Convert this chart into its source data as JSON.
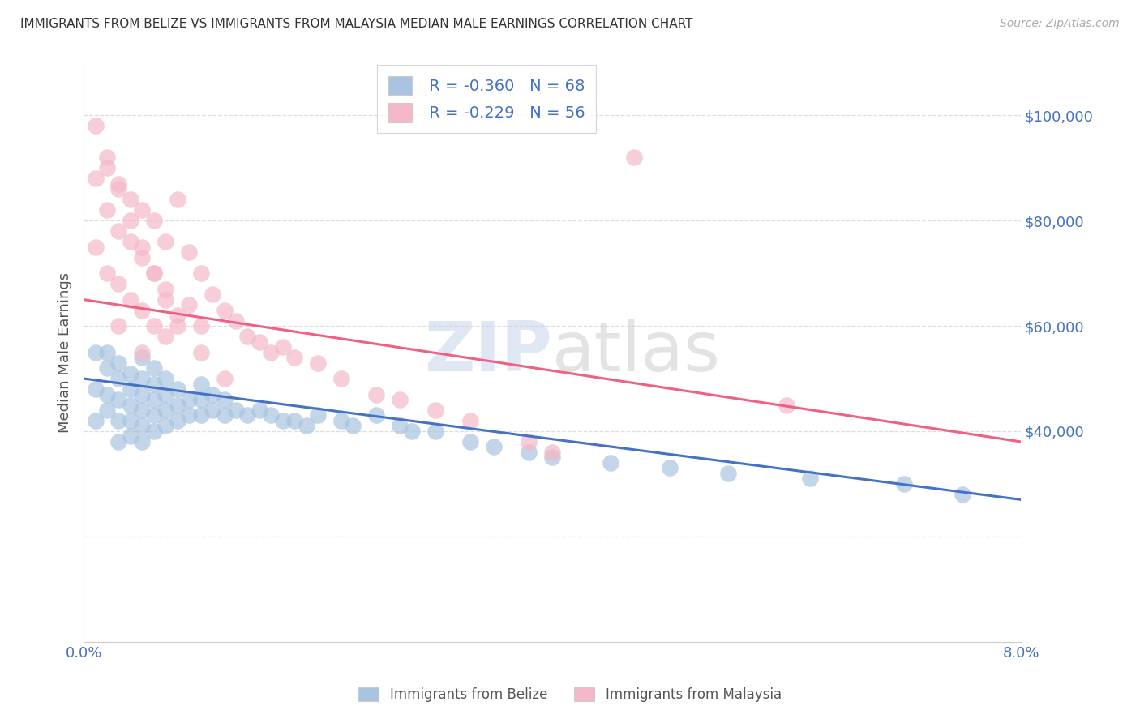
{
  "title": "IMMIGRANTS FROM BELIZE VS IMMIGRANTS FROM MALAYSIA MEDIAN MALE EARNINGS CORRELATION CHART",
  "source": "Source: ZipAtlas.com",
  "ylabel": "Median Male Earnings",
  "xlim": [
    0.0,
    0.08
  ],
  "ylim": [
    0,
    110000
  ],
  "yticks": [
    0,
    20000,
    40000,
    60000,
    80000,
    100000
  ],
  "ytick_labels": [
    "",
    "",
    "$40,000",
    "$60,000",
    "$80,000",
    "$100,000"
  ],
  "xticks": [
    0.0,
    0.01,
    0.02,
    0.03,
    0.04,
    0.05,
    0.06,
    0.07,
    0.08
  ],
  "xtick_labels": [
    "0.0%",
    "",
    "",
    "",
    "",
    "",
    "",
    "",
    "8.0%"
  ],
  "belize_color": "#a8c4e0",
  "malaysia_color": "#f4b8c8",
  "belize_line_color": "#4472c4",
  "malaysia_line_color": "#f06080",
  "legend_r_belize": "R = -0.360",
  "legend_n_belize": "N = 68",
  "legend_r_malaysia": "R = -0.229",
  "legend_n_malaysia": "N = 56",
  "label_belize": "Immigrants from Belize",
  "label_malaysia": "Immigrants from Malaysia",
  "watermark_zip": "ZIP",
  "watermark_atlas": "atlas",
  "title_color": "#333333",
  "axis_label_color": "#555555",
  "tick_color": "#4472c4",
  "belize_line_x0": 0.0,
  "belize_line_y0": 50000,
  "belize_line_x1": 0.08,
  "belize_line_y1": 27000,
  "malaysia_line_x0": 0.0,
  "malaysia_line_y0": 65000,
  "malaysia_line_x1": 0.08,
  "malaysia_line_y1": 38000,
  "belize_scatter_x": [
    0.001,
    0.001,
    0.001,
    0.002,
    0.002,
    0.002,
    0.002,
    0.003,
    0.003,
    0.003,
    0.003,
    0.003,
    0.004,
    0.004,
    0.004,
    0.004,
    0.004,
    0.005,
    0.005,
    0.005,
    0.005,
    0.005,
    0.005,
    0.006,
    0.006,
    0.006,
    0.006,
    0.006,
    0.007,
    0.007,
    0.007,
    0.007,
    0.008,
    0.008,
    0.008,
    0.009,
    0.009,
    0.01,
    0.01,
    0.01,
    0.011,
    0.011,
    0.012,
    0.012,
    0.013,
    0.014,
    0.015,
    0.016,
    0.017,
    0.018,
    0.019,
    0.02,
    0.022,
    0.023,
    0.025,
    0.027,
    0.028,
    0.03,
    0.033,
    0.035,
    0.038,
    0.04,
    0.045,
    0.05,
    0.055,
    0.062,
    0.07,
    0.075
  ],
  "belize_scatter_y": [
    55000,
    48000,
    42000,
    52000,
    47000,
    44000,
    55000,
    50000,
    46000,
    53000,
    42000,
    38000,
    51000,
    48000,
    45000,
    42000,
    39000,
    54000,
    50000,
    47000,
    44000,
    41000,
    38000,
    52000,
    49000,
    46000,
    43000,
    40000,
    50000,
    47000,
    44000,
    41000,
    48000,
    45000,
    42000,
    46000,
    43000,
    49000,
    46000,
    43000,
    47000,
    44000,
    46000,
    43000,
    44000,
    43000,
    44000,
    43000,
    42000,
    42000,
    41000,
    43000,
    42000,
    41000,
    43000,
    41000,
    40000,
    40000,
    38000,
    37000,
    36000,
    35000,
    34000,
    33000,
    32000,
    31000,
    30000,
    28000
  ],
  "malaysia_scatter_x": [
    0.001,
    0.001,
    0.001,
    0.002,
    0.002,
    0.002,
    0.003,
    0.003,
    0.003,
    0.003,
    0.004,
    0.004,
    0.004,
    0.005,
    0.005,
    0.005,
    0.005,
    0.006,
    0.006,
    0.006,
    0.007,
    0.007,
    0.007,
    0.008,
    0.008,
    0.009,
    0.009,
    0.01,
    0.01,
    0.011,
    0.012,
    0.013,
    0.014,
    0.015,
    0.016,
    0.017,
    0.018,
    0.02,
    0.022,
    0.025,
    0.027,
    0.03,
    0.033,
    0.038,
    0.04,
    0.002,
    0.003,
    0.004,
    0.005,
    0.006,
    0.007,
    0.008,
    0.01,
    0.012,
    0.047,
    0.06
  ],
  "malaysia_scatter_y": [
    98000,
    88000,
    75000,
    90000,
    82000,
    70000,
    86000,
    78000,
    68000,
    60000,
    84000,
    76000,
    65000,
    82000,
    73000,
    63000,
    55000,
    80000,
    70000,
    60000,
    76000,
    67000,
    58000,
    84000,
    62000,
    74000,
    64000,
    70000,
    60000,
    66000,
    63000,
    61000,
    58000,
    57000,
    55000,
    56000,
    54000,
    53000,
    50000,
    47000,
    46000,
    44000,
    42000,
    38000,
    36000,
    92000,
    87000,
    80000,
    75000,
    70000,
    65000,
    60000,
    55000,
    50000,
    92000,
    45000
  ]
}
